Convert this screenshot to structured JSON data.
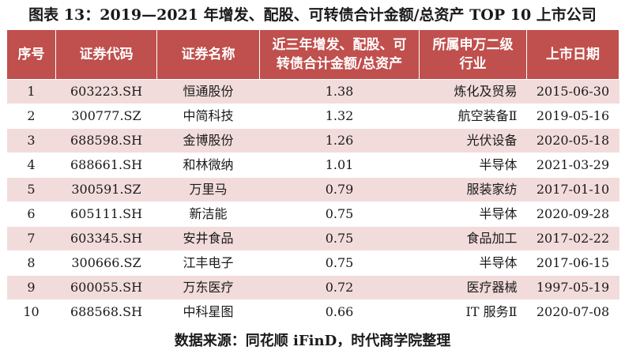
{
  "title": "图表 13：2019—2021 年增发、配股、可转债合计金额/总资产 TOP 10 上市公司",
  "table": {
    "headers": {
      "index": "序号",
      "code": "证券代码",
      "name": "证券名称",
      "ratio_line1": "近三年增发、配股、可",
      "ratio_line2": "转债合计金额/总资产",
      "industry_line1": "所属申万二级",
      "industry_line2": "行业",
      "date": "上市日期"
    },
    "rows": [
      {
        "index": "1",
        "code": "603223.SH",
        "name": "恒通股份",
        "ratio": "1.38",
        "industry": "炼化及贸易",
        "date": "2015-06-30"
      },
      {
        "index": "2",
        "code": "300777.SZ",
        "name": "中简科技",
        "ratio": "1.32",
        "industry": "航空装备Ⅱ",
        "date": "2019-05-16"
      },
      {
        "index": "3",
        "code": "688598.SH",
        "name": "金博股份",
        "ratio": "1.26",
        "industry": "光伏设备",
        "date": "2020-05-18"
      },
      {
        "index": "4",
        "code": "688661.SH",
        "name": "和林微纳",
        "ratio": "1.01",
        "industry": "半导体",
        "date": "2021-03-29"
      },
      {
        "index": "5",
        "code": "300591.SZ",
        "name": "万里马",
        "ratio": "0.79",
        "industry": "服装家纺",
        "date": "2017-01-10"
      },
      {
        "index": "6",
        "code": "605111.SH",
        "name": "新洁能",
        "ratio": "0.75",
        "industry": "半导体",
        "date": "2020-09-28"
      },
      {
        "index": "7",
        "code": "603345.SH",
        "name": "安井食品",
        "ratio": "0.75",
        "industry": "食品加工",
        "date": "2017-02-22"
      },
      {
        "index": "8",
        "code": "300666.SZ",
        "name": "江丰电子",
        "ratio": "0.75",
        "industry": "半导体",
        "date": "2017-06-15"
      },
      {
        "index": "9",
        "code": "600055.SH",
        "name": "万东医疗",
        "ratio": "0.72",
        "industry": "医疗器械",
        "date": "1997-05-19"
      },
      {
        "index": "10",
        "code": "688568.SH",
        "name": "中科星图",
        "ratio": "0.66",
        "industry": "IT 服务Ⅱ",
        "date": "2020-07-08"
      }
    ]
  },
  "source": "数据来源：同花顺 iFinD，时代商学院整理",
  "colors": {
    "header_bg": "#c0504d",
    "stripe_bg": "#f2dcdb"
  }
}
